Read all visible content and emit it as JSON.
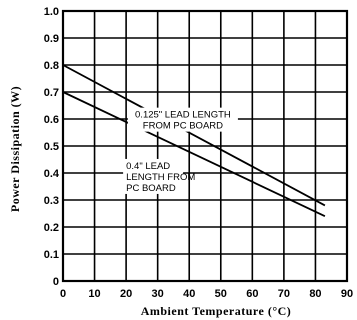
{
  "chart_data": {
    "type": "line",
    "xlabel": "Ambient Temperature (°C)",
    "ylabel": "Power Dissipation (W)",
    "xlim": [
      0,
      90
    ],
    "ylim": [
      0,
      1.0
    ],
    "grid": true,
    "x_ticks": [
      "0",
      "10",
      "20",
      "30",
      "40",
      "50",
      "60",
      "70",
      "80",
      "90"
    ],
    "y_ticks": [
      "0",
      "0.1",
      "0.2",
      "0.3",
      "0.4",
      "0.5",
      "0.6",
      "0.7",
      "0.8",
      "0.9",
      "1.0"
    ],
    "series": [
      {
        "name": "0.125\" LEAD LENGTH FROM PC BOARD",
        "x": [
          0,
          83
        ],
        "y": [
          0.8,
          0.28
        ]
      },
      {
        "name": "0.4\" LEAD LENGTH FROM PC BOARD",
        "x": [
          0,
          83
        ],
        "y": [
          0.7,
          0.24
        ]
      }
    ],
    "annotations": [
      {
        "lines": [
          "0.125\" LEAD LENGTH",
          "FROM PC BOARD"
        ]
      },
      {
        "lines": [
          "0.4\" LEAD",
          "LENGTH FROM",
          "PC BOARD"
        ]
      }
    ]
  }
}
